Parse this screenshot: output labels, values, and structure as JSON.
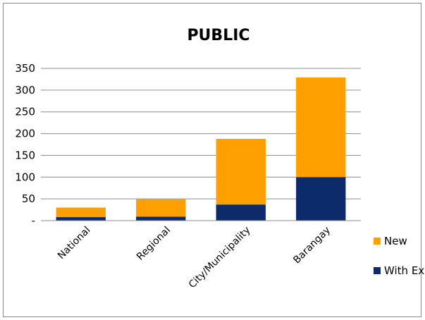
{
  "chart_data": {
    "type": "bar",
    "stacked": true,
    "title": "PUBLIC",
    "xlabel": "",
    "ylabel": "",
    "categories": [
      "National",
      "Regional",
      "City/Municipality",
      "Barangay"
    ],
    "series": [
      {
        "name": "With Existing",
        "values": [
          8,
          9,
          37,
          100
        ],
        "color": "#0d2a6b"
      },
      {
        "name": "New",
        "values": [
          22,
          40,
          151,
          229
        ],
        "color": "#ffa000"
      }
    ],
    "ylim": [
      0,
      350
    ],
    "yticks": [
      0,
      50,
      100,
      150,
      200,
      250,
      300,
      350
    ],
    "ytick_labels": [
      "-",
      "50",
      "100",
      "150",
      "200",
      "250",
      "300",
      "350"
    ],
    "grid": true,
    "legend": "right"
  }
}
